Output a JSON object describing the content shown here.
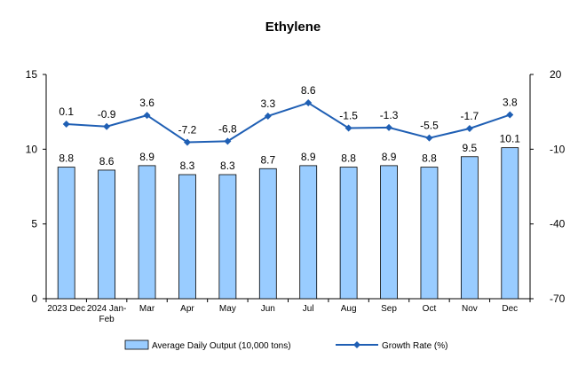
{
  "chart_data": {
    "type": "bar",
    "title": "Ethylene",
    "categories": [
      "2023 Dec",
      "2024 Jan-Feb",
      "Mar",
      "Apr",
      "May",
      "Jun",
      "Jul",
      "Aug",
      "Sep",
      "Oct",
      "Nov",
      "Dec"
    ],
    "series": [
      {
        "name": "Average Daily Output (10,000 tons)",
        "type": "bar",
        "axis": "left",
        "color": "#99ccff",
        "values": [
          8.8,
          8.6,
          8.9,
          8.3,
          8.3,
          8.7,
          8.9,
          8.8,
          8.9,
          8.8,
          9.5,
          10.1
        ]
      },
      {
        "name": "Growth Rate (%)",
        "type": "line",
        "axis": "right",
        "color": "#1f5fb4",
        "values": [
          0.1,
          -0.9,
          3.6,
          -7.2,
          -6.8,
          3.3,
          8.6,
          -1.5,
          -1.3,
          -5.5,
          -1.7,
          3.8
        ]
      }
    ],
    "y_left": {
      "range": [
        0,
        15
      ],
      "ticks": [
        0,
        5,
        10,
        15
      ]
    },
    "y_right": {
      "range": [
        -70,
        20
      ],
      "ticks": [
        -70,
        -40,
        -10,
        20
      ]
    },
    "grid": false,
    "legend_position": "bottom"
  }
}
